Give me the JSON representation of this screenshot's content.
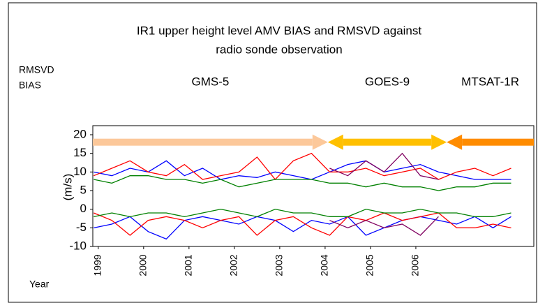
{
  "chart_data": {
    "type": "line",
    "title": "IR1 upper height level AMV BIAS and RMSVD against",
    "subtitle": "radio sonde observation",
    "y_labels": [
      "RMSVD",
      "BIAS"
    ],
    "y_axis_label": "(m/s)",
    "x_axis_label": "Year",
    "xlim": [
      1998.88,
      2008.6
    ],
    "ylim": [
      -10,
      20
    ],
    "xticks": [
      1999,
      2000,
      2001,
      2002,
      2003,
      2004,
      2005,
      2006
    ],
    "yticks": [
      20,
      15,
      10,
      5,
      0,
      -5,
      -10
    ],
    "grid": false,
    "periods": [
      {
        "label": "GMS-5",
        "start": 1998.88,
        "end": 2004.06,
        "level": 18,
        "color": "#fcc89a",
        "heads": "end"
      },
      {
        "label": "GOES-9",
        "start": 2004.06,
        "end": 2006.68,
        "level": 18,
        "color": "#ffc000",
        "heads": "both"
      },
      {
        "label": "MTSAT-1R",
        "start": 2006.68,
        "end": 2008.6,
        "level": 18,
        "color": "#ff8c00",
        "heads": "start"
      }
    ],
    "x": [
      1998.9,
      1999.3,
      1999.7,
      2000.1,
      2000.5,
      2000.9,
      2001.3,
      2001.7,
      2002.1,
      2002.5,
      2002.9,
      2003.3,
      2003.7,
      2004.1,
      2004.5,
      2004.9,
      2005.3,
      2005.7,
      2006.1,
      2006.5,
      2006.9,
      2007.3,
      2007.7,
      2008.1
    ],
    "series": [
      {
        "color": "#0000ff",
        "values": [
          10,
          9,
          11,
          10,
          13,
          9,
          11,
          8,
          9,
          8.5,
          10,
          9,
          8,
          10,
          12,
          13,
          10,
          11,
          12,
          10,
          9,
          8,
          8,
          8
        ]
      },
      {
        "color": "#ff0000",
        "values": [
          9,
          11,
          13,
          10,
          9,
          12,
          8,
          9,
          10,
          14,
          8,
          13,
          15,
          10,
          10,
          11,
          9,
          10,
          11,
          8,
          10,
          11,
          9,
          11
        ]
      },
      {
        "color": "#008000",
        "values": [
          8,
          7,
          9,
          9,
          8,
          8,
          7,
          8,
          6,
          7,
          8,
          8,
          8,
          7,
          7,
          6,
          7,
          6,
          6,
          5,
          6,
          6,
          7,
          7
        ]
      },
      {
        "color": "#800060",
        "values": [
          null,
          null,
          null,
          null,
          null,
          null,
          null,
          null,
          null,
          null,
          null,
          null,
          null,
          11,
          9,
          13,
          10,
          15,
          9,
          8,
          null,
          null,
          null,
          null
        ]
      },
      {
        "color": "#0000ff",
        "values": [
          -5,
          -4,
          -2,
          -6,
          -8,
          -3,
          -2,
          -3,
          -4,
          -2,
          -3,
          -6,
          -3,
          -4,
          -2,
          -7,
          -5,
          -3,
          -2,
          -3,
          -4,
          -2,
          -5,
          -2
        ]
      },
      {
        "color": "#ff0000",
        "values": [
          -1,
          -3,
          -7,
          -3,
          -2,
          -3,
          -5,
          -3,
          -2,
          -7,
          -3,
          -2,
          -5,
          -7,
          -2,
          -3,
          -1,
          -3,
          -2,
          -1,
          -5,
          -5,
          -4,
          -5
        ]
      },
      {
        "color": "#008000",
        "values": [
          -2,
          -1,
          -2,
          -1,
          -1,
          -2,
          -1,
          0,
          -1,
          -2,
          0,
          -1,
          -1,
          -2,
          -2,
          0,
          -1,
          -1,
          0,
          -1,
          -1,
          -2,
          -2,
          -1
        ]
      },
      {
        "color": "#800060",
        "values": [
          null,
          null,
          null,
          null,
          null,
          null,
          null,
          null,
          null,
          null,
          null,
          null,
          null,
          -3,
          -5,
          -3,
          -5,
          -4,
          -7,
          -2,
          null,
          null,
          null,
          null
        ]
      }
    ]
  }
}
